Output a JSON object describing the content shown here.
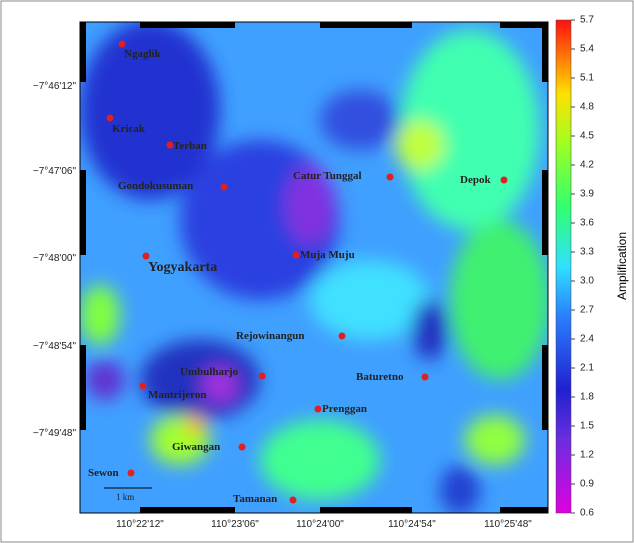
{
  "map": {
    "colorbar": {
      "label": "Amplification",
      "lim": [
        0.6,
        5.7
      ],
      "ticks": [
        0.6,
        0.9,
        1.2,
        1.5,
        1.8,
        2.1,
        2.4,
        2.7,
        {
          "value": 3,
          "label": "3.0"
        },
        3.3,
        3.6,
        3.9,
        4.2,
        4.5,
        4.8,
        5.1,
        5.4,
        5.7
      ]
    },
    "x_labels": [
      "110°22'12\"",
      "110°23'06\"",
      "110°24'00\"",
      "110°24'54\"",
      "110°25'48\""
    ],
    "y_labels": [
      "−7°46'12\"",
      "−7°47'06\"",
      "−7°48'00\"",
      "−7°48'54\"",
      "−7°49'48\""
    ],
    "places": [
      "Ngaglik",
      "Kricak",
      "Terban",
      "Gondokusuman",
      "Yogyakarta",
      "Catur Tunggal",
      "Depok",
      "Muja Muju",
      "Rejowinangun",
      "Umbulharjo",
      "Mantrijeron",
      "Baturetno",
      "Prenggan",
      "Giwangan",
      "Sewon",
      "Tamanan"
    ],
    "scale_bar": "1 km"
  }
}
